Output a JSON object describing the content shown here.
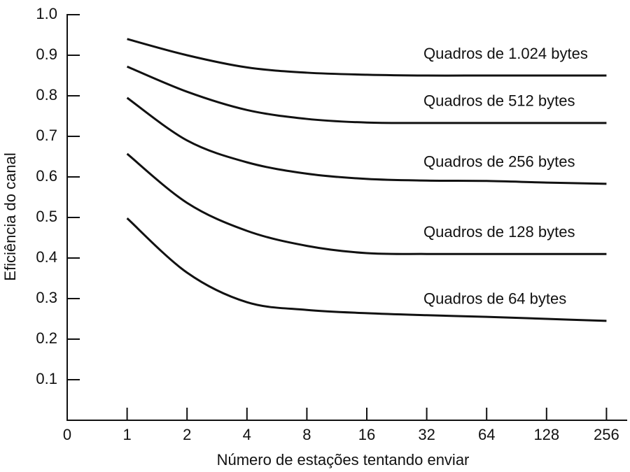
{
  "chart_data": {
    "type": "line",
    "x_label": "Número de estações tentando enviar",
    "y_label": "Eficiência do canal",
    "categories": [
      "0",
      "1",
      "2",
      "4",
      "8",
      "16",
      "32",
      "64",
      "128",
      "256"
    ],
    "ylim": [
      0,
      1
    ],
    "yticks": [
      0.1,
      0.2,
      0.3,
      0.4,
      0.5,
      0.6,
      0.7,
      0.8,
      0.9,
      {
        "value": 1,
        "label": "1.0"
      }
    ],
    "series": [
      {
        "name": "Quadros de 1.024 bytes",
        "color": "#111111",
        "values": [
          null,
          0.94,
          0.9,
          0.87,
          0.857,
          0.852,
          0.85,
          0.85,
          0.85,
          0.85
        ]
      },
      {
        "name": "Quadros de 512 bytes",
        "color": "#111111",
        "values": [
          null,
          0.872,
          0.81,
          0.765,
          0.743,
          0.734,
          0.733,
          0.733,
          0.733,
          0.733
        ]
      },
      {
        "name": "Quadros de 256 bytes",
        "color": "#111111",
        "values": [
          null,
          0.795,
          0.69,
          0.636,
          0.608,
          0.595,
          0.591,
          0.59,
          0.586,
          0.583
        ]
      },
      {
        "name": "Quadros de 128 bytes",
        "color": "#111111",
        "values": [
          null,
          0.657,
          0.536,
          0.467,
          0.43,
          0.412,
          0.41,
          0.41,
          0.41,
          0.41
        ]
      },
      {
        "name": "Quadros de 64 bytes",
        "color": "#111111",
        "values": [
          null,
          0.498,
          0.364,
          0.291,
          0.272,
          0.264,
          0.259,
          0.255,
          0.25,
          0.245
        ]
      }
    ]
  }
}
